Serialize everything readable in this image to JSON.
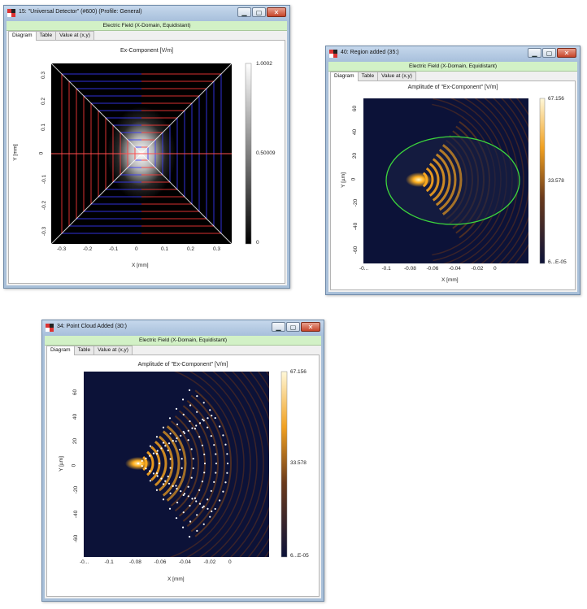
{
  "windows": [
    {
      "title": "15: \"Universal Detector\" (#600) (Profile: General)",
      "header": "Electric Field (X-Domain, Equidistant)",
      "tabs": [
        "Diagram",
        "Table",
        "Value at (x,y)"
      ],
      "controls": {
        "minimize": "▁",
        "maximize": "▢",
        "close": "✕"
      }
    },
    {
      "title": "40: Region added (35:)",
      "header": "Electric Field (X-Domain, Equidistant)",
      "tabs": [
        "Diagram",
        "Table",
        "Value at (x,y)"
      ],
      "controls": {
        "minimize": "▁",
        "maximize": "▢",
        "close": "✕"
      }
    },
    {
      "title": "34: Point Cloud Added (30:)",
      "header": "Electric Field (X-Domain, Equidistant)",
      "tabs": [
        "Diagram",
        "Table",
        "Value at (x,y)"
      ],
      "controls": {
        "minimize": "▁",
        "maximize": "▢",
        "close": "✕"
      }
    }
  ],
  "chart_data": [
    {
      "type": "heatmap",
      "title": "Ex-Component  [V/m]",
      "xlabel": "X [mm]",
      "ylabel": "Y [mm]",
      "xlim": [
        -0.35,
        0.35
      ],
      "ylim": [
        -0.35,
        0.35
      ],
      "x_ticks": [
        "-0.3",
        "-0.2",
        "-0.1",
        "0",
        "0.1",
        "0.2",
        "0.3"
      ],
      "y_ticks": [
        "0.3",
        "0.2",
        "0.1",
        "0",
        "-0.1",
        "-0.2",
        "-0.3"
      ],
      "colorbar": {
        "max": "1.0002",
        "mid": "0.50009",
        "min": "0",
        "colormap": "grayscale"
      },
      "overlay": "polarization lines (red/blue)"
    },
    {
      "type": "heatmap",
      "title": "Amplitude of \"Ex-Component\"  [V/m]",
      "xlabel": "X [mm]",
      "ylabel": "Y [µm]",
      "x_ticks": [
        "-0...",
        "-0.1",
        "-0.08",
        "-0.06",
        "-0.04",
        "-0.02",
        "0",
        ""
      ],
      "y_ticks": [
        "60",
        "40",
        "20",
        "0",
        "-20",
        "-40",
        "-60"
      ],
      "colorbar": {
        "max": "67.156",
        "mid": "33.578",
        "min": "6...E-05",
        "colormap": "dark-blue to yellow-white"
      },
      "overlay": "green ellipse region"
    },
    {
      "type": "heatmap",
      "title": "Amplitude of \"Ex-Component\"  [V/m]",
      "xlabel": "X [mm]",
      "ylabel": "Y [µm]",
      "x_ticks": [
        "-0...",
        "-0.1",
        "-0.08",
        "-0.06",
        "-0.04",
        "-0.02",
        "0",
        ""
      ],
      "y_ticks": [
        "60",
        "40",
        "20",
        "0",
        "-20",
        "-40",
        "-60"
      ],
      "colorbar": {
        "max": "67.156",
        "mid": "33.578",
        "min": "6...E-05",
        "colormap": "dark-blue to yellow-white"
      },
      "overlay": "white point cloud"
    }
  ]
}
